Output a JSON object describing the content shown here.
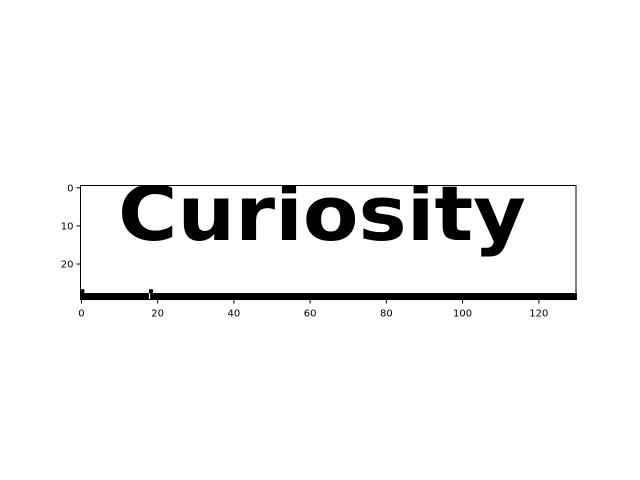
{
  "chart_data": {
    "type": "heatmap",
    "colormap": "binary (black ink on white)",
    "pixel_grid_size": [
      130,
      30
    ],
    "xlim": [
      0,
      130
    ],
    "ylim": [
      30,
      0
    ],
    "x_ticks": [
      0,
      20,
      40,
      60,
      80,
      100,
      120
    ],
    "y_ticks": [
      0,
      10,
      20
    ],
    "x_tick_labels": [
      "0",
      "20",
      "40",
      "60",
      "80",
      "100",
      "120"
    ],
    "y_tick_labels": [
      "0",
      "10",
      "20"
    ],
    "depicted_text": "Curiosity",
    "baseline_rule": {
      "y": 28,
      "x_start": 0,
      "x_end": 130,
      "gap_x": 18
    },
    "title": "",
    "xlabel": "",
    "ylabel": "",
    "grid": false,
    "legend": "none"
  }
}
